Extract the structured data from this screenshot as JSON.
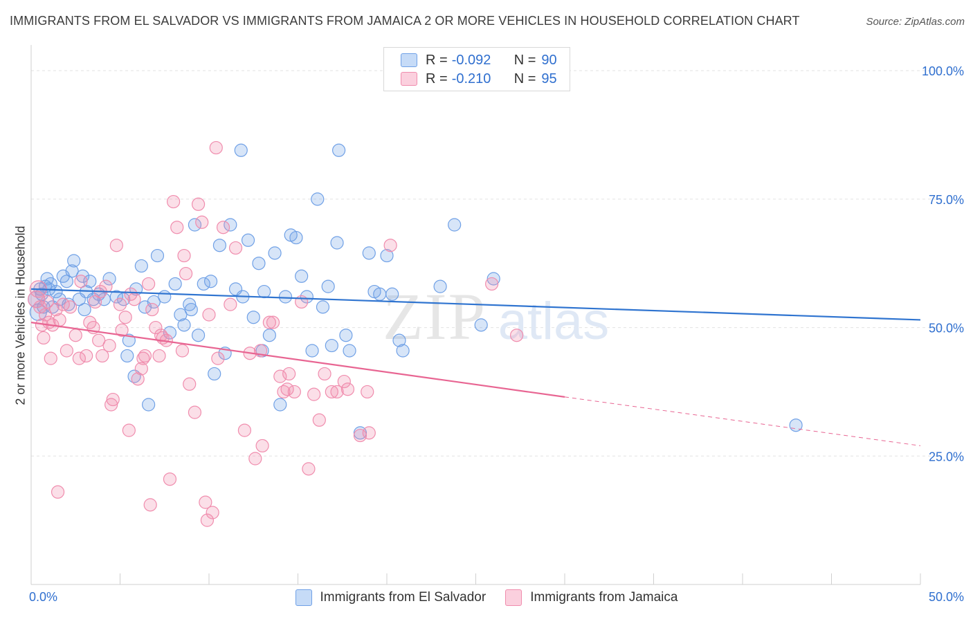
{
  "title": "IMMIGRANTS FROM EL SALVADOR VS IMMIGRANTS FROM JAMAICA 2 OR MORE VEHICLES IN HOUSEHOLD CORRELATION CHART",
  "source": "Source: ZipAtlas.com",
  "watermark": {
    "zip": "ZIP",
    "atlas": "atlas"
  },
  "legend": {
    "r_label": "R =",
    "n_label": "N =",
    "rows": [
      {
        "r": "-0.092",
        "n": "90",
        "color": "#6fa0e6"
      },
      {
        "r": "-0.210",
        "n": "95",
        "color": "#f08cad"
      }
    ]
  },
  "colors": {
    "blue": "#6fa0e6",
    "blue_line": "#2f74d0",
    "pink": "#f08cad",
    "pink_line": "#e86592",
    "tick_text": "#2f6fcf"
  },
  "chart_data": {
    "type": "scatter",
    "title": "IMMIGRANTS FROM EL SALVADOR VS IMMIGRANTS FROM JAMAICA 2 OR MORE VEHICLES IN HOUSEHOLD CORRELATION CHART",
    "xlabel": "",
    "ylabel": "2 or more Vehicles in Household",
    "xlim": [
      0,
      50
    ],
    "ylim": [
      0,
      105
    ],
    "x_ticks": [
      "0.0%",
      "50.0%"
    ],
    "y_ticks": [
      "25.0%",
      "50.0%",
      "75.0%",
      "100.0%"
    ],
    "y_tick_values": [
      25,
      50,
      75,
      100
    ],
    "grid": true,
    "legend_position": "top-center",
    "series": [
      {
        "name": "Immigrants from El Salvador",
        "color": "#6fa0e6",
        "trend": {
          "x": [
            0,
            50
          ],
          "y": [
            57.5,
            51.5
          ]
        },
        "points": [
          [
            0.3,
            55.5
          ],
          [
            0.5,
            57.5
          ],
          [
            0.6,
            56.5
          ],
          [
            0.7,
            54
          ],
          [
            0.8,
            58
          ],
          [
            0.9,
            59.5
          ],
          [
            1.0,
            57.5
          ],
          [
            1.2,
            54
          ],
          [
            1.4,
            57
          ],
          [
            1.6,
            55.5
          ],
          [
            1.8,
            60
          ],
          [
            2.0,
            59
          ],
          [
            2.1,
            54.5
          ],
          [
            2.4,
            63
          ],
          [
            2.7,
            55.5
          ],
          [
            2.9,
            60
          ],
          [
            3.1,
            57
          ],
          [
            3.3,
            59
          ],
          [
            3.5,
            55.5
          ],
          [
            3.8,
            56.5
          ],
          [
            4.1,
            55.5
          ],
          [
            4.4,
            59.5
          ],
          [
            4.8,
            56
          ],
          [
            5.2,
            55.5
          ],
          [
            5.4,
            44.5
          ],
          [
            5.5,
            47.5
          ],
          [
            5.9,
            57.5
          ],
          [
            6.2,
            62
          ],
          [
            6.4,
            54
          ],
          [
            6.6,
            35
          ],
          [
            6.9,
            55
          ],
          [
            7.1,
            64
          ],
          [
            7.5,
            56
          ],
          [
            7.8,
            49
          ],
          [
            8.1,
            58.5
          ],
          [
            8.4,
            52.5
          ],
          [
            8.6,
            50.5
          ],
          [
            8.9,
            54.5
          ],
          [
            9.2,
            70
          ],
          [
            9.4,
            48.5
          ],
          [
            9.7,
            58.5
          ],
          [
            10.1,
            59
          ],
          [
            10.3,
            41
          ],
          [
            10.6,
            66
          ],
          [
            10.9,
            45
          ],
          [
            11.2,
            70
          ],
          [
            11.5,
            57.5
          ],
          [
            11.9,
            56
          ],
          [
            12.2,
            67
          ],
          [
            12.5,
            52
          ],
          [
            12.8,
            62.5
          ],
          [
            13.1,
            57
          ],
          [
            13.4,
            48.5
          ],
          [
            13.7,
            64.5
          ],
          [
            14.0,
            35
          ],
          [
            14.3,
            56
          ],
          [
            14.6,
            68
          ],
          [
            14.9,
            67.5
          ],
          [
            15.2,
            60
          ],
          [
            15.5,
            56
          ],
          [
            15.8,
            45.5
          ],
          [
            16.1,
            75
          ],
          [
            16.4,
            54
          ],
          [
            16.7,
            58
          ],
          [
            16.9,
            46.5
          ],
          [
            17.2,
            66.5
          ],
          [
            17.7,
            48.5
          ],
          [
            17.9,
            45.5
          ],
          [
            18.5,
            29.5
          ],
          [
            19.0,
            64.5
          ],
          [
            19.3,
            57
          ],
          [
            19.6,
            56.5
          ],
          [
            20.0,
            64
          ],
          [
            20.3,
            56.5
          ],
          [
            20.7,
            47.5
          ],
          [
            20.9,
            45.5
          ],
          [
            23.0,
            58
          ],
          [
            23.8,
            70
          ],
          [
            25.3,
            50.5
          ],
          [
            26.0,
            59.5
          ],
          [
            11.8,
            84.5
          ],
          [
            17.3,
            84.5
          ],
          [
            43.0,
            31
          ],
          [
            0.4,
            53
          ],
          [
            1.1,
            58.5
          ],
          [
            2.3,
            61
          ],
          [
            3.0,
            53.5
          ],
          [
            5.8,
            40.5
          ],
          [
            9.0,
            53.5
          ],
          [
            13.0,
            45.5
          ]
        ]
      },
      {
        "name": "Immigrants from Jamaica",
        "color": "#f08cad",
        "trend": {
          "x": [
            0,
            30
          ],
          "y": [
            51,
            36.5
          ]
        },
        "trend_ext": {
          "x": [
            30,
            50
          ],
          "y": [
            36.5,
            27
          ]
        },
        "points": [
          [
            0.3,
            55.5
          ],
          [
            0.5,
            54
          ],
          [
            0.6,
            50.5
          ],
          [
            0.7,
            48
          ],
          [
            0.8,
            52.5
          ],
          [
            0.9,
            55
          ],
          [
            1.1,
            44
          ],
          [
            1.2,
            50.5
          ],
          [
            1.4,
            53.5
          ],
          [
            1.6,
            51.5
          ],
          [
            1.8,
            54.5
          ],
          [
            2.0,
            45.5
          ],
          [
            2.2,
            54
          ],
          [
            2.5,
            48.5
          ],
          [
            2.8,
            59
          ],
          [
            3.1,
            44.5
          ],
          [
            3.3,
            51
          ],
          [
            3.5,
            50
          ],
          [
            3.8,
            47.5
          ],
          [
            4.0,
            44.5
          ],
          [
            4.2,
            58
          ],
          [
            4.4,
            46.5
          ],
          [
            4.6,
            36
          ],
          [
            4.8,
            66
          ],
          [
            5.1,
            49.5
          ],
          [
            5.3,
            52
          ],
          [
            5.5,
            30
          ],
          [
            5.8,
            55.5
          ],
          [
            6.0,
            40
          ],
          [
            6.2,
            42
          ],
          [
            6.4,
            44.5
          ],
          [
            6.6,
            58.5
          ],
          [
            6.8,
            53.5
          ],
          [
            7.0,
            50
          ],
          [
            7.2,
            44.5
          ],
          [
            7.4,
            48
          ],
          [
            7.6,
            47.5
          ],
          [
            7.8,
            20.5
          ],
          [
            8.0,
            74.5
          ],
          [
            8.2,
            69.5
          ],
          [
            8.5,
            45.5
          ],
          [
            8.7,
            60.5
          ],
          [
            8.9,
            39
          ],
          [
            9.2,
            33.5
          ],
          [
            9.4,
            74
          ],
          [
            9.6,
            70.5
          ],
          [
            9.8,
            16
          ],
          [
            10.0,
            52.5
          ],
          [
            10.5,
            44
          ],
          [
            10.8,
            69.5
          ],
          [
            11.2,
            54.5
          ],
          [
            11.5,
            65.5
          ],
          [
            12.0,
            30
          ],
          [
            12.3,
            45
          ],
          [
            12.6,
            24.5
          ],
          [
            13.0,
            27
          ],
          [
            13.4,
            51
          ],
          [
            14.0,
            40.5
          ],
          [
            14.2,
            37.5
          ],
          [
            14.5,
            41
          ],
          [
            14.8,
            37.5
          ],
          [
            15.2,
            55
          ],
          [
            15.6,
            22.5
          ],
          [
            16.2,
            32
          ],
          [
            16.5,
            41
          ],
          [
            17.2,
            37.5
          ],
          [
            17.6,
            39.5
          ],
          [
            18.5,
            29
          ],
          [
            19.0,
            29.5
          ],
          [
            20.2,
            66
          ],
          [
            25.9,
            58.5
          ],
          [
            27.3,
            48.5
          ],
          [
            0.4,
            57.5
          ],
          [
            1.0,
            51
          ],
          [
            1.5,
            18
          ],
          [
            2.7,
            44
          ],
          [
            3.6,
            55
          ],
          [
            4.5,
            35
          ],
          [
            5.6,
            56.5
          ],
          [
            6.7,
            15.5
          ],
          [
            7.3,
            48.5
          ],
          [
            8.6,
            64
          ],
          [
            9.9,
            12.5
          ],
          [
            10.4,
            85
          ],
          [
            12.9,
            45.5
          ],
          [
            13.6,
            51
          ],
          [
            14.4,
            38
          ],
          [
            15.9,
            37
          ],
          [
            16.9,
            37.5
          ],
          [
            18.9,
            37.5
          ],
          [
            3.9,
            57
          ],
          [
            5.0,
            54.5
          ],
          [
            6.3,
            44
          ],
          [
            10.2,
            14
          ],
          [
            17.8,
            38
          ]
        ]
      }
    ]
  },
  "bottom_legend": [
    "Immigrants from El Salvador",
    "Immigrants from Jamaica"
  ]
}
